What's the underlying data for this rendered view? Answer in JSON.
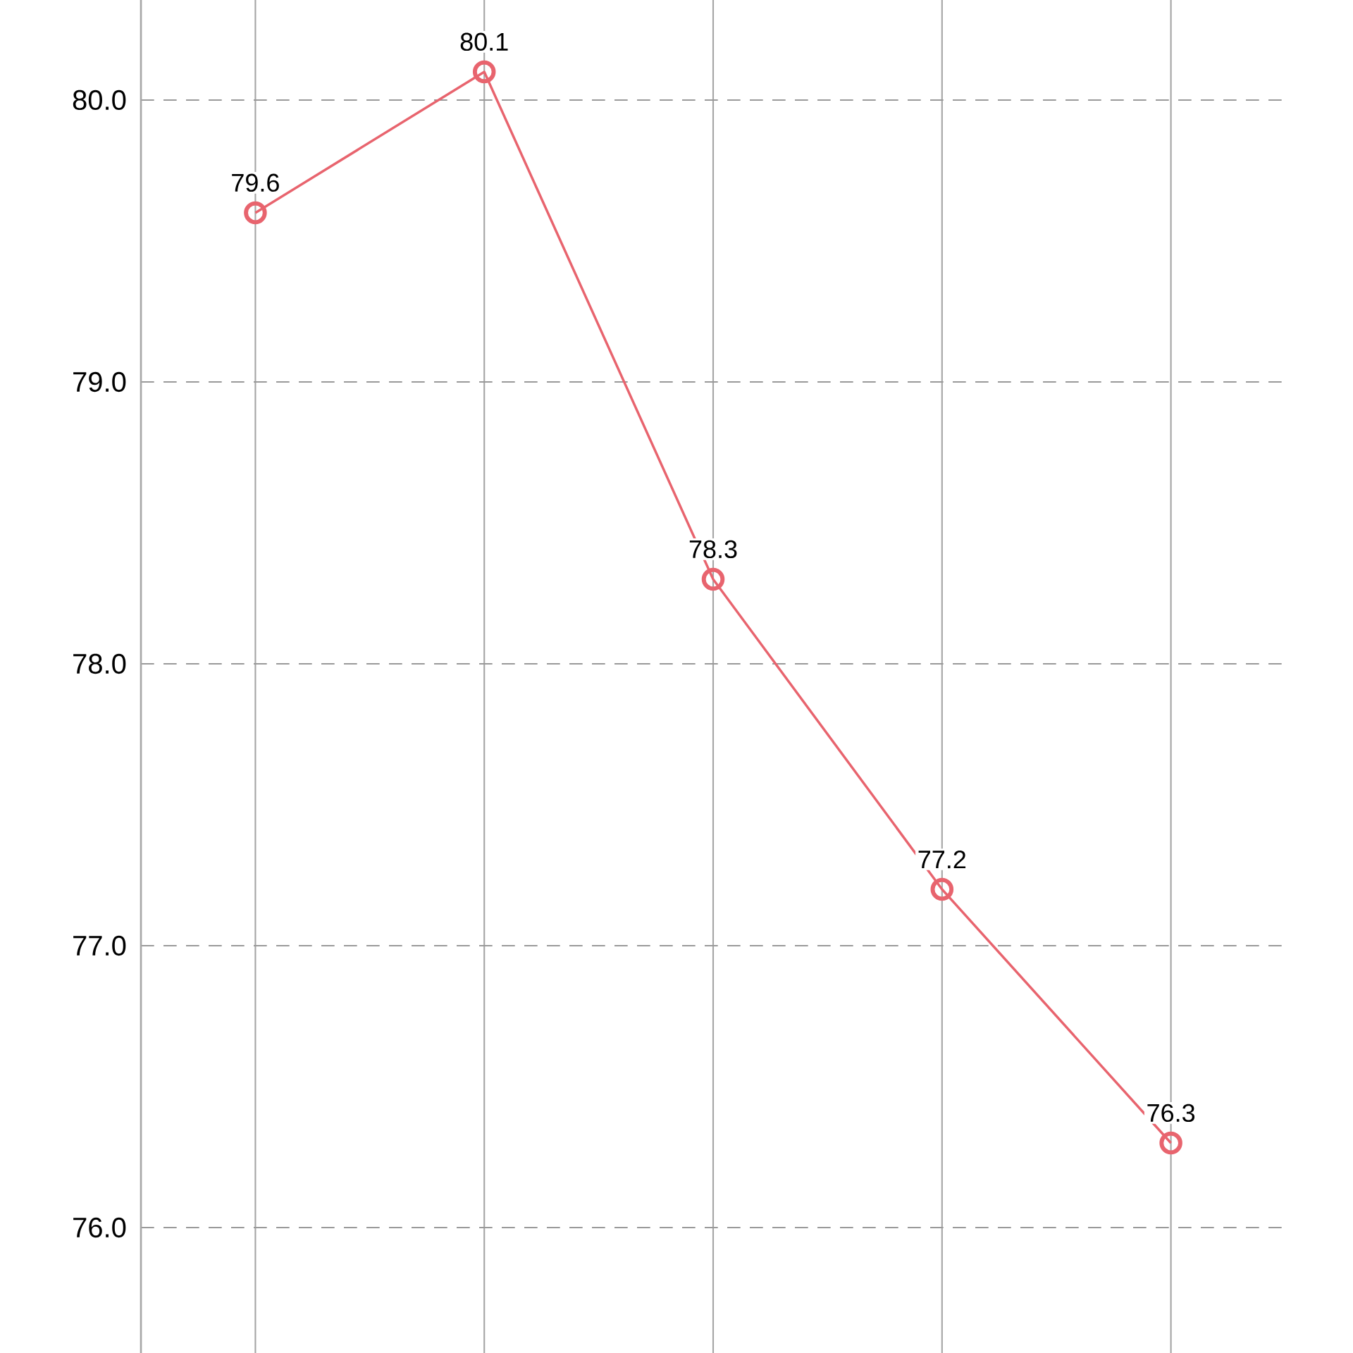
{
  "chart_data": {
    "type": "line",
    "categories": [
      null,
      null,
      null,
      null,
      null
    ],
    "series": [
      {
        "color": "#e8646e",
        "values": [
          79.6,
          80.1,
          78.3,
          77.2,
          76.3
        ]
      }
    ],
    "ylim": [
      75.555,
      80.355
    ],
    "yticks": [
      {
        "value": 76,
        "label": "76.0"
      },
      {
        "value": 77,
        "label": "77.0"
      },
      {
        "value": 78,
        "label": "78.0"
      },
      {
        "value": 79,
        "label": "79.0"
      },
      {
        "value": 80,
        "label": "80.0"
      }
    ],
    "tick_labels": "y",
    "grid": true,
    "marker": "circle",
    "data_labels": true
  }
}
